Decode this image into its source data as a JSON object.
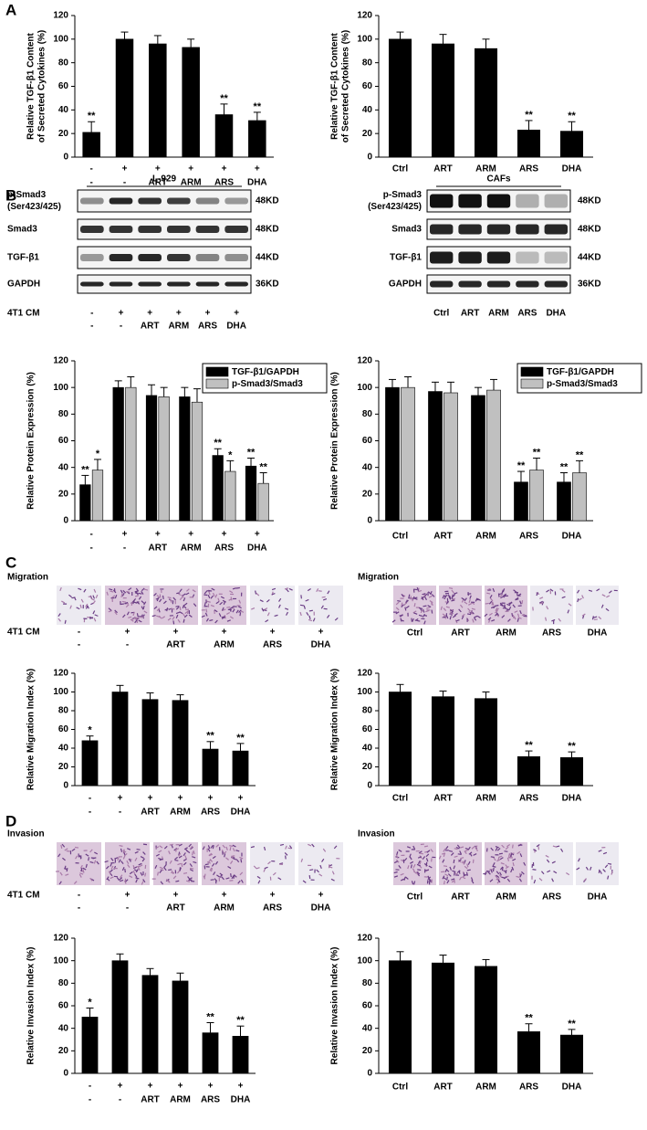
{
  "panel_labels": [
    "A",
    "B",
    "C",
    "D"
  ],
  "blots": [
    {
      "title": "L-929",
      "rows": [
        {
          "label": [
            "p-Smad3",
            "(Ser423/425)"
          ],
          "size": "48KD"
        },
        {
          "label": [
            "Smad3"
          ],
          "size": "48KD"
        },
        {
          "label": [
            "TGF-β1"
          ],
          "size": "44KD"
        },
        {
          "label": [
            "GAPDH"
          ],
          "size": "36KD"
        }
      ],
      "conditions_label": "4T1 CM",
      "conditions": [
        [
          "-",
          "+",
          "+",
          "+",
          "+",
          "+"
        ],
        [
          "-",
          "-",
          "ART",
          "ARM",
          "ARS",
          "DHA"
        ]
      ]
    },
    {
      "title": "CAFs",
      "rows": [
        {
          "label": [
            "p-Smad3",
            "(Ser423/425)"
          ],
          "size": "48KD"
        },
        {
          "label": [
            "Smad3"
          ],
          "size": "48KD"
        },
        {
          "label": [
            "TGF-β1"
          ],
          "size": "44KD"
        },
        {
          "label": [
            "GAPDH"
          ],
          "size": "36KD"
        }
      ],
      "conditions": [
        [
          "Ctrl",
          "ART",
          "ARM",
          "ARS",
          "DHA"
        ]
      ]
    }
  ],
  "micrographs": [
    {
      "title": "Migration",
      "conditions_label": "4T1 CM",
      "conditions": [
        [
          "-",
          "+",
          "+",
          "+",
          "+",
          "+"
        ],
        [
          "-",
          "-",
          "ART",
          "ARM",
          "ARS",
          "DHA"
        ]
      ]
    },
    {
      "title": "Migration",
      "conditions": [
        [
          "Ctrl",
          "ART",
          "ARM",
          "ARS",
          "DHA"
        ]
      ]
    },
    {
      "title": "Invasion",
      "conditions_label": "4T1 CM",
      "conditions": [
        [
          "-",
          "+",
          "+",
          "+",
          "+",
          "+"
        ],
        [
          "-",
          "-",
          "ART",
          "ARM",
          "ARS",
          "DHA"
        ]
      ]
    },
    {
      "title": "Invasion",
      "conditions": [
        [
          "Ctrl",
          "ART",
          "ARM",
          "ARS",
          "DHA"
        ]
      ]
    }
  ],
  "chart_data": [
    {
      "type": "bar",
      "ylabel": [
        "Relative TGF-β1 Content",
        "of Secreted Cytokines (%)"
      ],
      "top_row_label": "4T1 CM",
      "top_row": [
        "-",
        "+",
        "+",
        "+",
        "+",
        "+"
      ],
      "categories": [
        "-",
        "-",
        "ART",
        "ARM",
        "ARS",
        "DHA"
      ],
      "values": [
        21,
        100,
        96,
        93,
        36,
        31
      ],
      "errors": [
        9,
        6,
        7,
        7,
        9,
        7
      ],
      "annotations": [
        "**",
        null,
        null,
        null,
        "**",
        "**"
      ],
      "color": "#000000",
      "ylim": [
        0,
        120
      ],
      "yticks": [
        0,
        20,
        40,
        60,
        80,
        100,
        120
      ]
    },
    {
      "type": "bar",
      "ylabel": [
        "Relative TGF-β1 Content",
        "of Secreted Cytokines (%)"
      ],
      "categories": [
        "Ctrl",
        "ART",
        "ARM",
        "ARS",
        "DHA"
      ],
      "values": [
        100,
        96,
        92,
        23,
        22
      ],
      "errors": [
        6,
        8,
        8,
        8,
        8
      ],
      "annotations": [
        null,
        null,
        null,
        "**",
        "**"
      ],
      "color": "#000000",
      "ylim": [
        0,
        120
      ],
      "yticks": [
        0,
        20,
        40,
        60,
        80,
        100,
        120
      ]
    },
    {
      "type": "bar",
      "ylabel": "Relative Protein Expression (%)",
      "top_row_label": "4T1 CM",
      "top_row": [
        "-",
        "+",
        "+",
        "+",
        "+",
        "+"
      ],
      "categories": [
        "-",
        "-",
        "ART",
        "ARM",
        "ARS",
        "DHA"
      ],
      "series": [
        {
          "name": "TGF-β1/GAPDH",
          "color": "#000000",
          "values": [
            27,
            100,
            94,
            93,
            49,
            41
          ],
          "errors": [
            7,
            5,
            8,
            7,
            5,
            6
          ],
          "annotations": [
            "**",
            null,
            null,
            null,
            "**",
            "**"
          ]
        },
        {
          "name": "p-Smad3/Smad3",
          "color": "#c0c0c0",
          "values": [
            38,
            100,
            93,
            89,
            37,
            28
          ],
          "errors": [
            8,
            8,
            7,
            10,
            8,
            8
          ],
          "annotations": [
            "*",
            null,
            null,
            null,
            "*",
            "**"
          ]
        }
      ],
      "legend": "upper right",
      "ylim": [
        0,
        120
      ],
      "yticks": [
        0,
        20,
        40,
        60,
        80,
        100,
        120
      ]
    },
    {
      "type": "bar",
      "ylabel": "Relative Protein Expression (%)",
      "categories": [
        "Ctrl",
        "ART",
        "ARM",
        "ARS",
        "DHA"
      ],
      "series": [
        {
          "name": "TGF-β1/GAPDH",
          "color": "#000000",
          "values": [
            100,
            97,
            94,
            29,
            29
          ],
          "errors": [
            6,
            7,
            6,
            8,
            7
          ],
          "annotations": [
            null,
            null,
            null,
            "**",
            "**"
          ]
        },
        {
          "name": "p-Smad3/Smad3",
          "color": "#c0c0c0",
          "values": [
            100,
            96,
            98,
            38,
            36
          ],
          "errors": [
            8,
            8,
            8,
            9,
            9
          ],
          "annotations": [
            null,
            null,
            null,
            "**",
            "**"
          ]
        }
      ],
      "legend": "upper right",
      "ylim": [
        0,
        120
      ],
      "yticks": [
        0,
        20,
        40,
        60,
        80,
        100,
        120
      ]
    },
    {
      "type": "bar",
      "ylabel": "Relative Migration Index (%)",
      "top_row_label": "4T1 CM",
      "top_row": [
        "-",
        "+",
        "+",
        "+",
        "+",
        "+"
      ],
      "categories": [
        "-",
        "-",
        "ART",
        "ARM",
        "ARS",
        "DHA"
      ],
      "values": [
        48,
        100,
        92,
        91,
        39,
        37
      ],
      "errors": [
        5,
        7,
        7,
        6,
        8,
        8
      ],
      "annotations": [
        "*",
        null,
        null,
        null,
        "**",
        "**"
      ],
      "color": "#000000",
      "ylim": [
        0,
        120
      ],
      "yticks": [
        0,
        20,
        40,
        60,
        80,
        100,
        120
      ]
    },
    {
      "type": "bar",
      "ylabel": "Relative Migration Index (%)",
      "categories": [
        "Ctrl",
        "ART",
        "ARM",
        "ARS",
        "DHA"
      ],
      "values": [
        100,
        95,
        93,
        31,
        30
      ],
      "errors": [
        8,
        6,
        7,
        6,
        6
      ],
      "annotations": [
        null,
        null,
        null,
        "**",
        "**"
      ],
      "color": "#000000",
      "ylim": [
        0,
        120
      ],
      "yticks": [
        0,
        20,
        40,
        60,
        80,
        100,
        120
      ]
    },
    {
      "type": "bar",
      "ylabel": "Relative Invasion Index (%)",
      "top_row_label": "4T1 CM",
      "top_row": [
        "-",
        "+",
        "+",
        "+",
        "+",
        "+"
      ],
      "categories": [
        "-",
        "-",
        "ART",
        "ARM",
        "ARS",
        "DHA"
      ],
      "values": [
        50,
        100,
        87,
        82,
        36,
        33
      ],
      "errors": [
        8,
        6,
        6,
        7,
        9,
        9
      ],
      "annotations": [
        "*",
        null,
        null,
        null,
        "**",
        "**"
      ],
      "color": "#000000",
      "ylim": [
        0,
        120
      ],
      "yticks": [
        0,
        20,
        40,
        60,
        80,
        100,
        120
      ]
    },
    {
      "type": "bar",
      "ylabel": "Relative Invasion Index (%)",
      "categories": [
        "Ctrl",
        "ART",
        "ARM",
        "ARS",
        "DHA"
      ],
      "values": [
        100,
        98,
        95,
        37,
        34
      ],
      "errors": [
        8,
        7,
        6,
        7,
        5
      ],
      "annotations": [
        null,
        null,
        null,
        "**",
        "**"
      ],
      "color": "#000000",
      "ylim": [
        0,
        120
      ],
      "yticks": [
        0,
        20,
        40,
        60,
        80,
        100,
        120
      ]
    }
  ]
}
